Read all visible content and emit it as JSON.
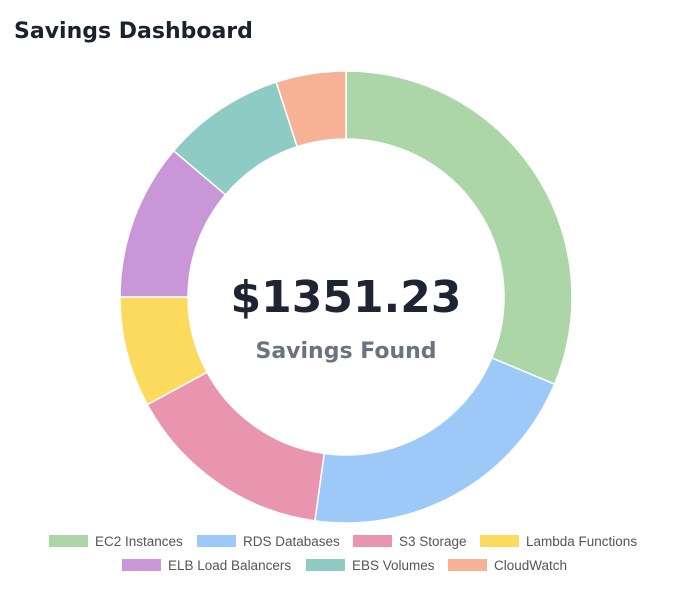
{
  "title": "Savings Dashboard",
  "chart_data": {
    "type": "donut",
    "center_value": "$1351.23",
    "center_label": "Savings Found",
    "categories": [
      "EC2 Instances",
      "RDS Databases",
      "S3 Storage",
      "Lambda Functions",
      "ELB Load Balancers",
      "EBS Volumes",
      "CloudWatch"
    ],
    "values": [
      31.3,
      20.9,
      14.9,
      7.9,
      11.2,
      8.8,
      5.0
    ],
    "colors": [
      "#acd6a8",
      "#9cc9f7",
      "#e995b0",
      "#fbda5e",
      "#c996d8",
      "#8ecbc4",
      "#f7b296"
    ]
  }
}
